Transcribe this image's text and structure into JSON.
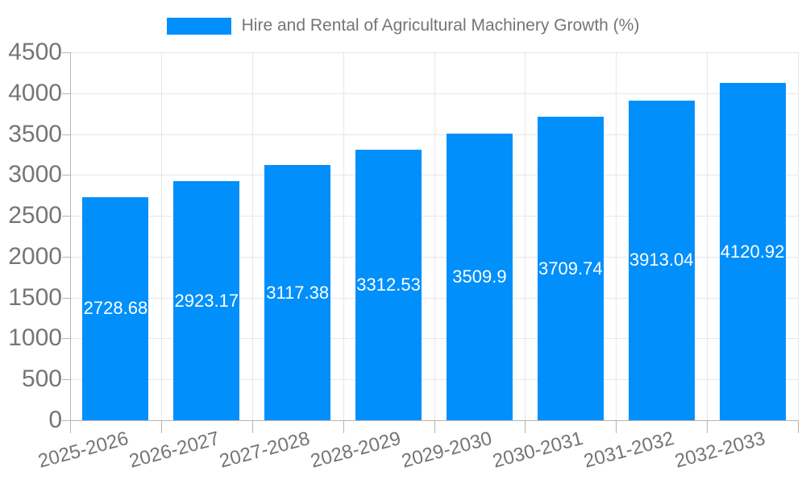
{
  "chart_data": {
    "type": "bar",
    "title": "Hire and Rental of Agricultural Machinery Growth (%)",
    "legend": {
      "label": "Hire and Rental of Agricultural Machinery Growth (%)",
      "position": "top"
    },
    "categories": [
      "2025-2026",
      "2026-2027",
      "2027-2028",
      "2028-2029",
      "2029-2030",
      "2030-2031",
      "2031-2032",
      "2032-2033"
    ],
    "values": [
      2728.68,
      2923.17,
      3117.38,
      3312.53,
      3509.9,
      3709.74,
      3913.04,
      4120.92
    ],
    "value_labels": [
      "2728.68",
      "2923.17",
      "3117.38",
      "3312.53",
      "3509.9",
      "3709.74",
      "3913.04",
      "4120.92"
    ],
    "xlabel": "",
    "ylabel": "",
    "ylim": [
      0,
      4500
    ],
    "ytick_step": 500,
    "ytick_labels": [
      "0",
      "500",
      "1000",
      "1500",
      "2000",
      "2500",
      "3000",
      "3500",
      "4000",
      "4500"
    ],
    "grid": true,
    "x_label_rotation_deg": -15,
    "colors": {
      "bar": "#008FFB",
      "data_label": "#FFFFFF",
      "axis_text": "#757575",
      "gridline": "#E7E7E7",
      "axis_line": "#B5B5B5",
      "background": "#FFFFFF"
    }
  }
}
